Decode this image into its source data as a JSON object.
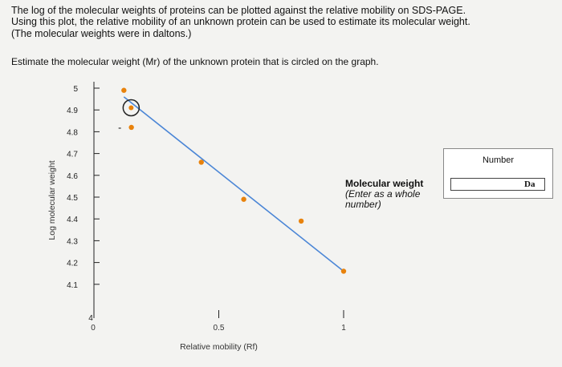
{
  "instructions": {
    "line1": "The log of the molecular weights of proteins can be plotted against the relative mobility on SDS-PAGE.",
    "line2": "Using this plot, the relative mobility of an unknown protein can be used to estimate its molecular weight.",
    "line3": "(The molecular weights were in daltons.)",
    "question": "Estimate the molecular weight (Mr) of the unknown protein that is circled on the graph."
  },
  "answer": {
    "label": "Molecular weight",
    "hint": "(Enter as a whole number)",
    "column_header": "Number",
    "value": "",
    "unit": "Da"
  },
  "chart_data": {
    "type": "scatter",
    "xlabel": "Relative mobility (Rf)",
    "ylabel": "Log molecular weight",
    "x_ticks": [
      "0",
      "0.5",
      "1"
    ],
    "y_ticks": [
      "5",
      "4.9",
      "4.8",
      "4.7",
      "4.6",
      "4.5",
      "4.4",
      "4.3",
      "4.2",
      "4.1",
      "4"
    ],
    "xlim": [
      0,
      1
    ],
    "ylim": [
      4,
      5
    ],
    "points": [
      {
        "x": 0.12,
        "y": 4.99
      },
      {
        "x": 0.15,
        "y": 4.82
      },
      {
        "x": 0.43,
        "y": 4.66
      },
      {
        "x": 0.6,
        "y": 4.49
      },
      {
        "x": 0.83,
        "y": 4.39
      },
      {
        "x": 1.0,
        "y": 4.16
      }
    ],
    "unknown": {
      "x": 0.149,
      "y": 4.91
    },
    "fit_line": {
      "x": [
        0.12,
        1.0
      ],
      "y": [
        4.96,
        4.16
      ]
    },
    "point_color": "#e8820c",
    "line_color": "#4b86d6"
  }
}
